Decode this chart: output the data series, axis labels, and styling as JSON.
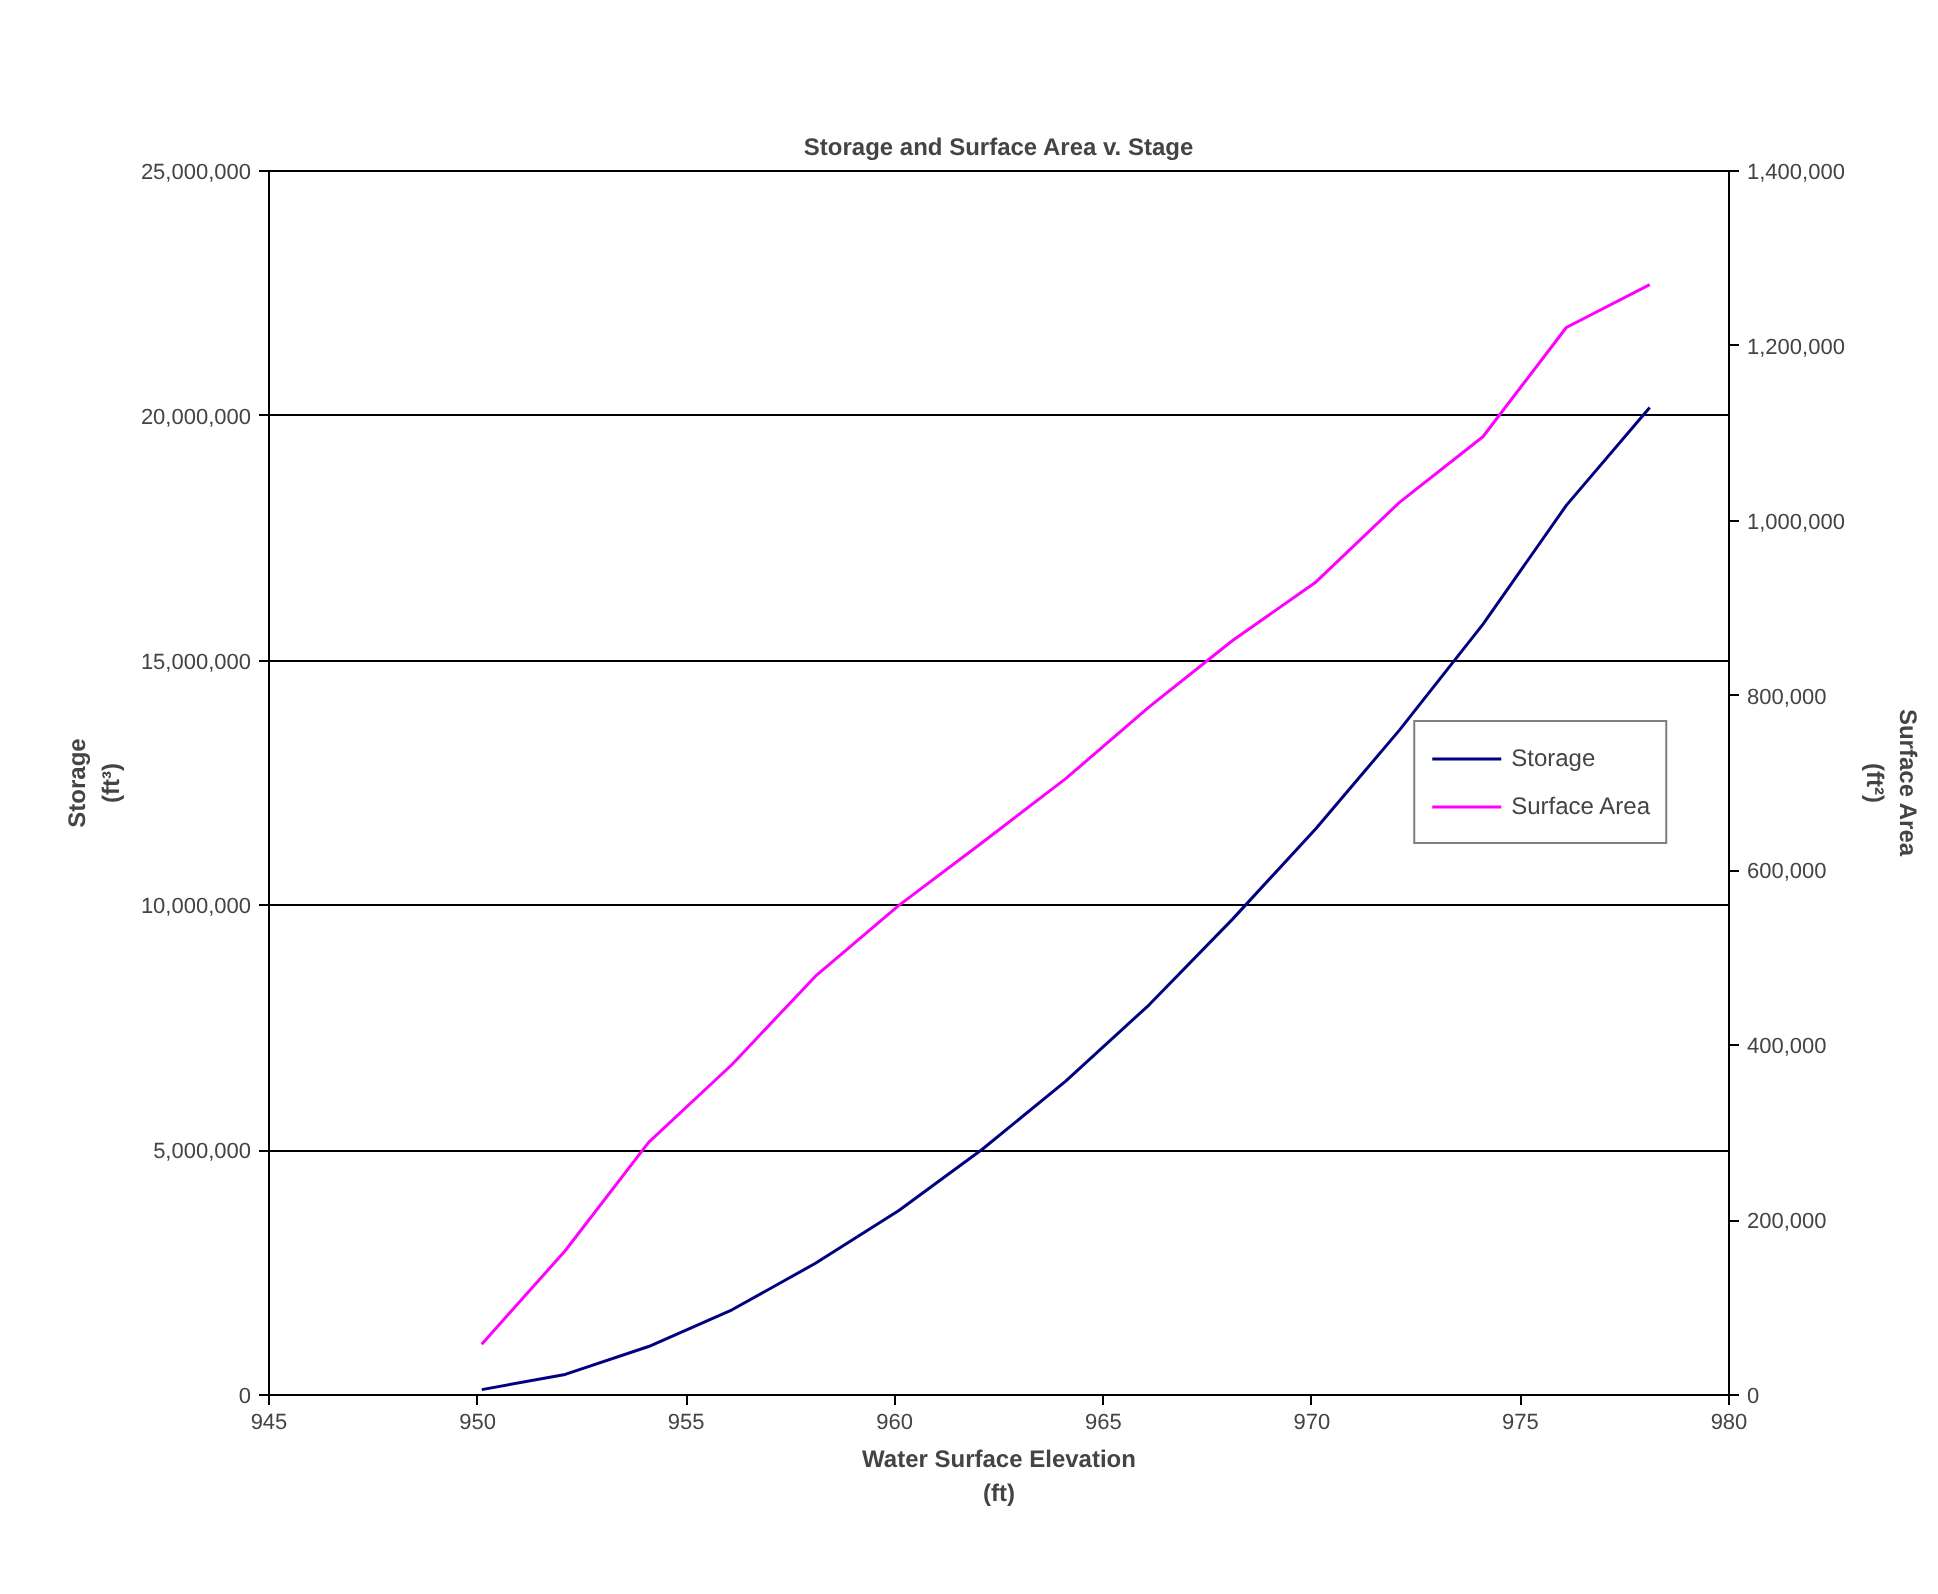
{
  "chart_data": {
    "type": "line",
    "title": "Storage and Surface Area v. Stage",
    "xlabel": "Water Surface Elevation\n(ft)",
    "ylabel": "Storage\n(ft³)",
    "y2label": "Surface Area\n(ft²)",
    "x": [
      950.1,
      952.1,
      954.1,
      956.1,
      958.1,
      960.1,
      962.1,
      964.1,
      966.1,
      968.1,
      970.1,
      972.1,
      974.1,
      976.1,
      978.1
    ],
    "series": [
      {
        "name": "Storage",
        "color": "#000080",
        "values": [
          110000,
          420000,
          990000,
          1740000,
          2690000,
          3770000,
          5020000,
          6410000,
          7970000,
          9720000,
          11570000,
          13580000,
          15740000,
          18170000,
          20170000
        ]
      },
      {
        "name": "Surface Area",
        "color": "#ff00ff",
        "axis": "y2",
        "values": [
          58000,
          165000,
          289000,
          378000,
          479000,
          560000,
          632000,
          705000,
          787000,
          863000,
          930000,
          1021000,
          1096000,
          1221000,
          1270000
        ]
      }
    ],
    "xlim": [
      945,
      980
    ],
    "xticks": [
      {
        "value": 945,
        "label": "945"
      },
      {
        "value": 950,
        "label": "950"
      },
      {
        "value": 955,
        "label": "955"
      },
      {
        "value": 960,
        "label": "960"
      },
      {
        "value": 965,
        "label": "965"
      },
      {
        "value": 970,
        "label": "970"
      },
      {
        "value": 975,
        "label": "975"
      },
      {
        "value": 980,
        "label": "980"
      }
    ],
    "ylim": [
      0,
      25000000
    ],
    "yticks": [
      {
        "value": 0,
        "label": "0"
      },
      {
        "value": 5000000,
        "label": "5,000,000"
      },
      {
        "value": 10000000,
        "label": "10,000,000"
      },
      {
        "value": 15000000,
        "label": "15,000,000"
      },
      {
        "value": 20000000,
        "label": "20,000,000"
      },
      {
        "value": 25000000,
        "label": "25,000,000"
      }
    ],
    "y2lim": [
      0,
      1400000
    ],
    "y2ticks": [
      {
        "value": 0,
        "label": "0"
      },
      {
        "value": 200000,
        "label": "200,000"
      },
      {
        "value": 400000,
        "label": "400,000"
      },
      {
        "value": 600000,
        "label": "600,000"
      },
      {
        "value": 800000,
        "label": "800,000"
      },
      {
        "value": 1000000,
        "label": "1,000,000"
      },
      {
        "value": 1200000,
        "label": "1,200,000"
      },
      {
        "value": 1400000,
        "label": "1,400,000"
      }
    ],
    "grid": "y",
    "legend": "right",
    "marker": "none",
    "line_style": "solid"
  }
}
